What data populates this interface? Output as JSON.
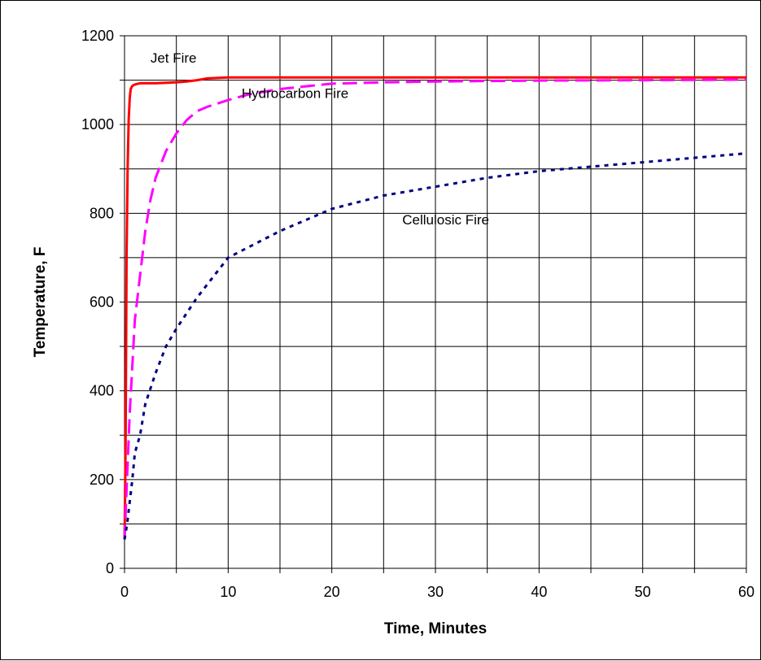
{
  "chart_data": {
    "type": "line",
    "title": "",
    "xlabel": "Time, Minutes",
    "ylabel": "Temperature, F",
    "xlim": [
      0,
      60
    ],
    "ylim": [
      0,
      1200
    ],
    "x_ticks": [
      0,
      10,
      20,
      30,
      40,
      50,
      60
    ],
    "y_ticks": [
      0,
      200,
      400,
      600,
      800,
      1000,
      1200
    ],
    "x_grid_step": 5,
    "y_grid_step": 100,
    "grid": true,
    "legend": "none",
    "annotations": [
      {
        "text": "Jet Fire",
        "x": 2.5,
        "y": 1140
      },
      {
        "text": "Hydrocarbon Fire",
        "x": 11.3,
        "y": 1060
      },
      {
        "text": "Cellulosic Fire",
        "x": 26.8,
        "y": 775
      }
    ],
    "series": [
      {
        "color": "#ff0000",
        "style": "solid",
        "x": [
          0,
          0.05,
          0.1,
          0.15,
          0.2,
          0.3,
          0.4,
          0.5,
          0.6,
          0.7,
          0.8,
          1.0,
          1.3,
          1.6,
          2,
          2.5,
          3,
          4,
          5,
          6,
          7,
          8,
          10,
          20,
          30,
          40,
          50,
          60
        ],
        "y": [
          65,
          150,
          280,
          480,
          700,
          900,
          1010,
          1060,
          1080,
          1085,
          1088,
          1090,
          1092,
          1093,
          1093,
          1093,
          1093,
          1094,
          1095,
          1097,
          1100,
          1104,
          1106,
          1106,
          1106,
          1106,
          1106,
          1106
        ]
      },
      {
        "color": "#ff00ff",
        "style": "dashed",
        "x": [
          0,
          0.5,
          1,
          1.5,
          2,
          2.5,
          3,
          4,
          5,
          6,
          7,
          8,
          10,
          12,
          15,
          20,
          25,
          30,
          40,
          50,
          60
        ],
        "y": [
          65,
          350,
          560,
          660,
          760,
          830,
          880,
          940,
          980,
          1010,
          1030,
          1040,
          1055,
          1068,
          1080,
          1092,
          1095,
          1097,
          1099,
          1100,
          1101
        ]
      },
      {
        "color": "#000080",
        "style": "dotted",
        "x": [
          0,
          0.25,
          0.5,
          0.75,
          1,
          1.5,
          2,
          3,
          4,
          5,
          7,
          10,
          15,
          20,
          25,
          30,
          35,
          40,
          45,
          50,
          55,
          60
        ],
        "y": [
          65,
          100,
          150,
          200,
          260,
          300,
          370,
          440,
          500,
          540,
          610,
          700,
          760,
          810,
          840,
          860,
          880,
          895,
          905,
          915,
          925,
          935
        ]
      }
    ]
  }
}
